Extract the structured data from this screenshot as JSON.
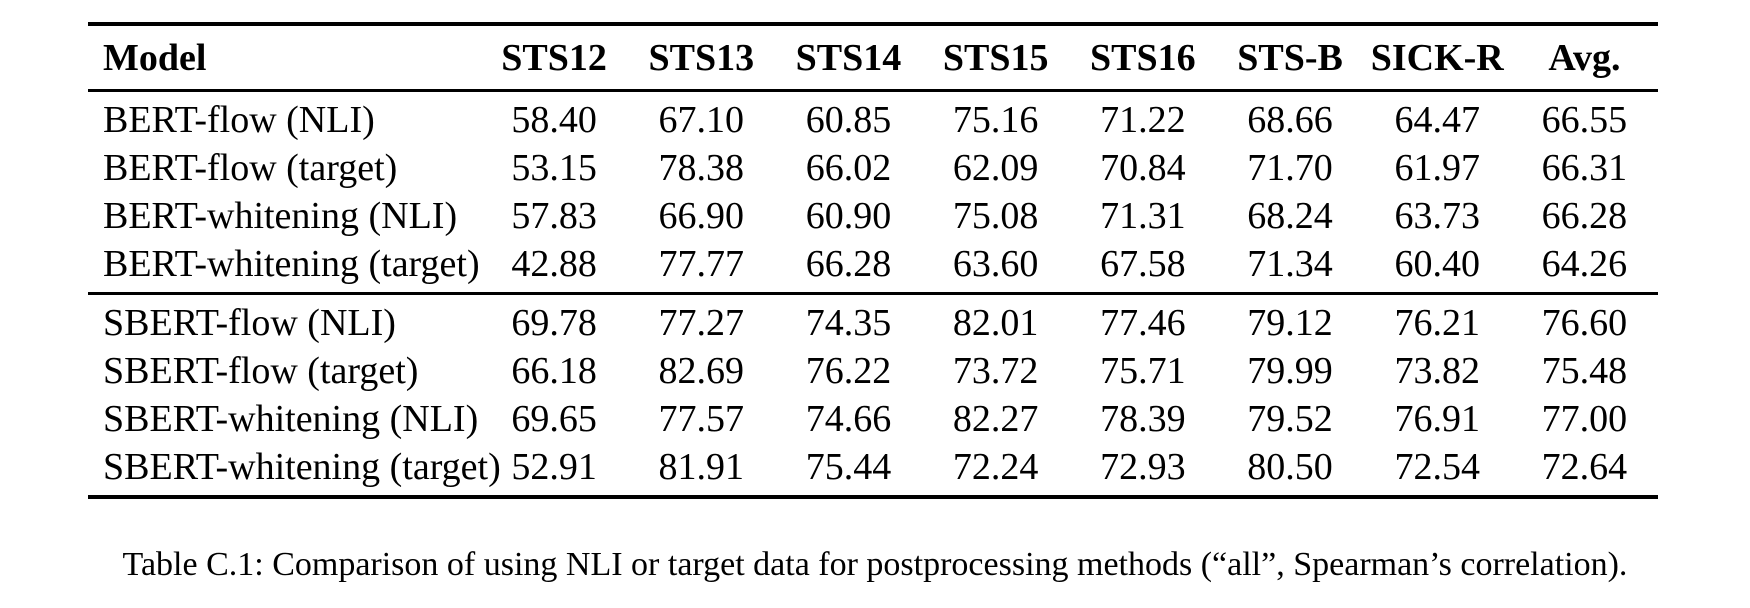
{
  "page": {
    "background": "#ffffff",
    "text_color": "#000000"
  },
  "table": {
    "columns": [
      "Model",
      "STS12",
      "STS13",
      "STS14",
      "STS15",
      "STS16",
      "STS-B",
      "SICK-R",
      "Avg."
    ],
    "groups": [
      {
        "name": "bert",
        "rows": [
          {
            "model": "BERT-flow (NLI)",
            "values": [
              "58.40",
              "67.10",
              "60.85",
              "75.16",
              "71.22",
              "68.66",
              "64.47",
              "66.55"
            ]
          },
          {
            "model": "BERT-flow (target)",
            "values": [
              "53.15",
              "78.38",
              "66.02",
              "62.09",
              "70.84",
              "71.70",
              "61.97",
              "66.31"
            ]
          },
          {
            "model": "BERT-whitening (NLI)",
            "values": [
              "57.83",
              "66.90",
              "60.90",
              "75.08",
              "71.31",
              "68.24",
              "63.73",
              "66.28"
            ]
          },
          {
            "model": "BERT-whitening (target)",
            "values": [
              "42.88",
              "77.77",
              "66.28",
              "63.60",
              "67.58",
              "71.34",
              "60.40",
              "64.26"
            ]
          }
        ]
      },
      {
        "name": "sbert",
        "rows": [
          {
            "model": "SBERT-flow (NLI)",
            "values": [
              "69.78",
              "77.27",
              "74.35",
              "82.01",
              "77.46",
              "79.12",
              "76.21",
              "76.60"
            ]
          },
          {
            "model": "SBERT-flow (target)",
            "values": [
              "66.18",
              "82.69",
              "76.22",
              "73.72",
              "75.71",
              "79.99",
              "73.82",
              "75.48"
            ]
          },
          {
            "model": "SBERT-whitening (NLI)",
            "values": [
              "69.65",
              "77.57",
              "74.66",
              "82.27",
              "78.39",
              "79.52",
              "76.91",
              "77.00"
            ]
          },
          {
            "model": "SBERT-whitening (target)",
            "values": [
              "52.91",
              "81.91",
              "75.44",
              "72.24",
              "72.93",
              "80.50",
              "72.54",
              "72.64"
            ]
          }
        ]
      }
    ]
  },
  "caption": "Table C.1: Comparison of using NLI or target data for postprocessing methods (“all”, Spearman’s correlation)."
}
